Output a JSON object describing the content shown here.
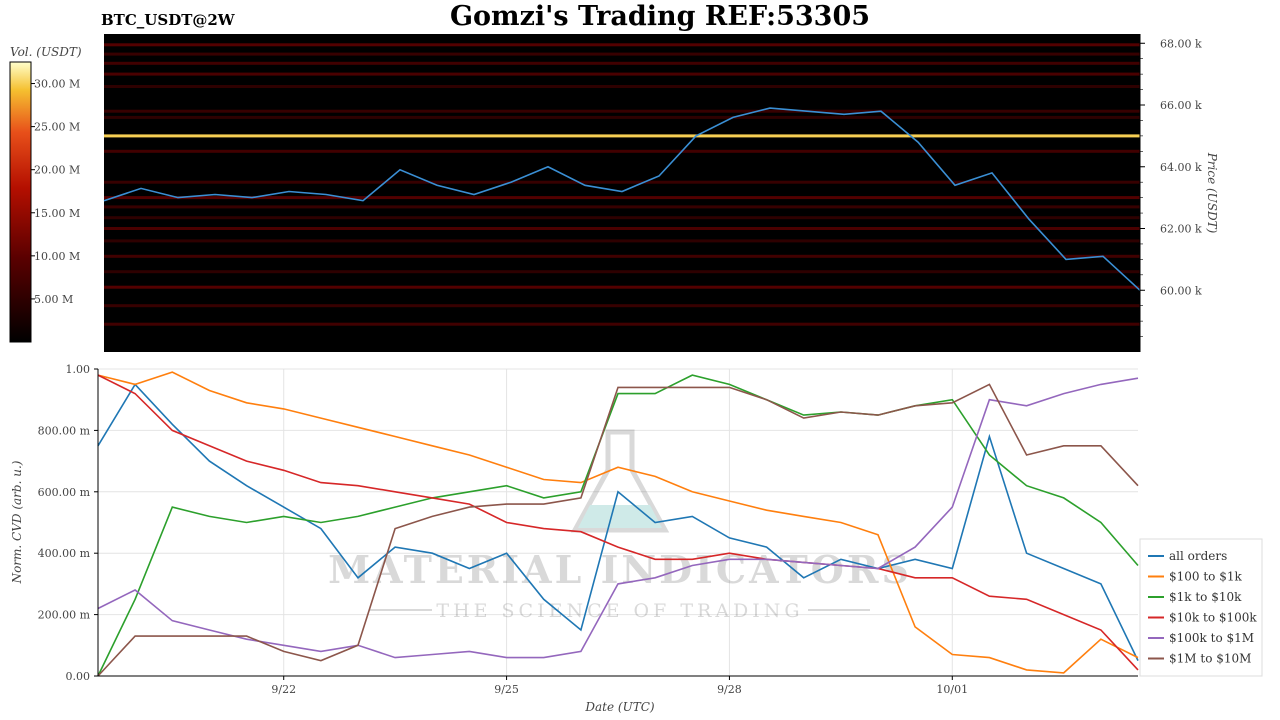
{
  "header": {
    "symbol": "BTC_USDT@2W",
    "title": "Gomzi's Trading REF:53305"
  },
  "watermark": {
    "line1": "MATERIAL INDICATORS",
    "line2": "THE SCIENCE OF TRADING"
  },
  "colors": {
    "price_line": "#3a8fd4",
    "heatmap_bg": "#000000",
    "all_orders": "#1f77b4",
    "s100_1k": "#ff7f0e",
    "s1k_10k": "#2ca02c",
    "s10k_100k": "#d62728",
    "s100k_1m": "#9467bd",
    "s1m_10m": "#8c564b"
  },
  "chart_data": [
    {
      "type": "heatmap",
      "colorbar": {
        "label": "Vol. (USDT)",
        "ticks": [
          "5.00 M",
          "10.00 M",
          "15.00 M",
          "20.00 M",
          "25.00 M",
          "30.00 M"
        ],
        "tick_values": [
          5,
          10,
          15,
          20,
          25,
          30
        ],
        "range": [
          0,
          32.5
        ]
      },
      "y_axis": {
        "label": "Price (USDT)",
        "ticks": [
          "60.00 k",
          "62.00 k",
          "64.00 k",
          "66.00 k",
          "68.00 k"
        ],
        "tick_values": [
          60000,
          62000,
          64000,
          66000,
          68000
        ],
        "range": [
          58000,
          68300
        ]
      },
      "x_range_days": [
        0,
        14
      ],
      "levels": [
        {
          "price": 67950,
          "vol": 9
        },
        {
          "price": 67650,
          "vol": 6
        },
        {
          "price": 67350,
          "vol": 7
        },
        {
          "price": 67000,
          "vol": 8
        },
        {
          "price": 66600,
          "vol": 5
        },
        {
          "price": 65800,
          "vol": 6
        },
        {
          "price": 65600,
          "vol": 5
        },
        {
          "price": 65000,
          "vol": 30
        },
        {
          "price": 64500,
          "vol": 7
        },
        {
          "price": 63500,
          "vol": 6
        },
        {
          "price": 63000,
          "vol": 9
        },
        {
          "price": 62700,
          "vol": 6
        },
        {
          "price": 62350,
          "vol": 5
        },
        {
          "price": 62000,
          "vol": 8
        },
        {
          "price": 61600,
          "vol": 5
        },
        {
          "price": 61100,
          "vol": 7
        },
        {
          "price": 60600,
          "vol": 5
        },
        {
          "price": 60100,
          "vol": 9
        },
        {
          "price": 59500,
          "vol": 6
        },
        {
          "price": 58900,
          "vol": 7
        }
      ],
      "price_series": {
        "name": "BTC price",
        "x_days": [
          0,
          0.5,
          1,
          1.5,
          2,
          2.5,
          3,
          3.5,
          4,
          4.5,
          5,
          5.5,
          6,
          6.5,
          7,
          7.5,
          8,
          8.5,
          9,
          9.5,
          10,
          10.5,
          11,
          11.5,
          12,
          12.5,
          13,
          13.5,
          14
        ],
        "y": [
          62900,
          63300,
          63000,
          63100,
          63000,
          63200,
          63100,
          62900,
          63900,
          63400,
          63100,
          63500,
          64000,
          63400,
          63200,
          63700,
          65000,
          65600,
          65900,
          65800,
          65700,
          65800,
          64800,
          63400,
          63800,
          62300,
          61000,
          61100,
          60000
        ]
      }
    },
    {
      "type": "line",
      "xlabel": "Date (UTC)",
      "ylabel": "Norm. CVD (arb. u.)",
      "x_ticks": [
        "9/22",
        "9/25",
        "9/28",
        "10/01"
      ],
      "x_tick_days": [
        2.5,
        5.5,
        8.5,
        11.5
      ],
      "x_range_days": [
        0,
        14
      ],
      "y_ticks": [
        "0.00",
        "200.00 m",
        "400.00 m",
        "600.00 m",
        "800.00 m",
        "1.00"
      ],
      "y_tick_values": [
        0,
        0.2,
        0.4,
        0.6,
        0.8,
        1.0
      ],
      "ylim": [
        0,
        1.0
      ],
      "grid": true,
      "legend_placement": "bottom-right",
      "x_days": [
        0,
        0.5,
        1,
        1.5,
        2,
        2.5,
        3,
        3.5,
        4,
        4.5,
        5,
        5.5,
        6,
        6.5,
        7,
        7.5,
        8,
        8.5,
        9,
        9.5,
        10,
        10.5,
        11,
        11.5,
        12,
        12.5,
        13,
        13.5,
        14
      ],
      "series": [
        {
          "name": "all orders",
          "color_key": "all_orders",
          "values": [
            0.75,
            0.95,
            0.82,
            0.7,
            0.62,
            0.55,
            0.48,
            0.32,
            0.42,
            0.4,
            0.35,
            0.4,
            0.25,
            0.15,
            0.6,
            0.5,
            0.52,
            0.45,
            0.42,
            0.32,
            0.38,
            0.35,
            0.38,
            0.35,
            0.78,
            0.4,
            0.35,
            0.3,
            0.05
          ]
        },
        {
          "name": "$100 to $1k",
          "color_key": "s100_1k",
          "values": [
            0.98,
            0.95,
            0.99,
            0.93,
            0.89,
            0.87,
            0.84,
            0.81,
            0.78,
            0.75,
            0.72,
            0.68,
            0.64,
            0.63,
            0.68,
            0.65,
            0.6,
            0.57,
            0.54,
            0.52,
            0.5,
            0.46,
            0.16,
            0.07,
            0.06,
            0.02,
            0.01,
            0.12,
            0.06
          ]
        },
        {
          "name": "$1k to $10k",
          "color_key": "s1k_10k",
          "values": [
            0.0,
            0.25,
            0.55,
            0.52,
            0.5,
            0.52,
            0.5,
            0.52,
            0.55,
            0.58,
            0.6,
            0.62,
            0.58,
            0.6,
            0.92,
            0.92,
            0.98,
            0.95,
            0.9,
            0.85,
            0.86,
            0.85,
            0.88,
            0.9,
            0.72,
            0.62,
            0.58,
            0.5,
            0.36
          ]
        },
        {
          "name": "$10k to $100k",
          "color_key": "s10k_100k",
          "values": [
            0.98,
            0.92,
            0.8,
            0.75,
            0.7,
            0.67,
            0.63,
            0.62,
            0.6,
            0.58,
            0.56,
            0.5,
            0.48,
            0.47,
            0.42,
            0.38,
            0.38,
            0.4,
            0.38,
            0.37,
            0.36,
            0.35,
            0.32,
            0.32,
            0.26,
            0.25,
            0.2,
            0.15,
            0.02
          ]
        },
        {
          "name": "$100k to $1M",
          "color_key": "s100k_1m",
          "values": [
            0.22,
            0.28,
            0.18,
            0.15,
            0.12,
            0.1,
            0.08,
            0.1,
            0.06,
            0.07,
            0.08,
            0.06,
            0.06,
            0.08,
            0.3,
            0.32,
            0.36,
            0.38,
            0.38,
            0.37,
            0.36,
            0.35,
            0.42,
            0.55,
            0.9,
            0.88,
            0.92,
            0.95,
            0.97
          ]
        },
        {
          "name": "$1M to $10M",
          "color_key": "s1m_10m",
          "values": [
            0.0,
            0.13,
            0.13,
            0.13,
            0.13,
            0.08,
            0.05,
            0.1,
            0.48,
            0.52,
            0.55,
            0.56,
            0.56,
            0.58,
            0.94,
            0.94,
            0.94,
            0.94,
            0.9,
            0.84,
            0.86,
            0.85,
            0.88,
            0.89,
            0.95,
            0.72,
            0.75,
            0.75,
            0.62
          ]
        }
      ]
    }
  ]
}
